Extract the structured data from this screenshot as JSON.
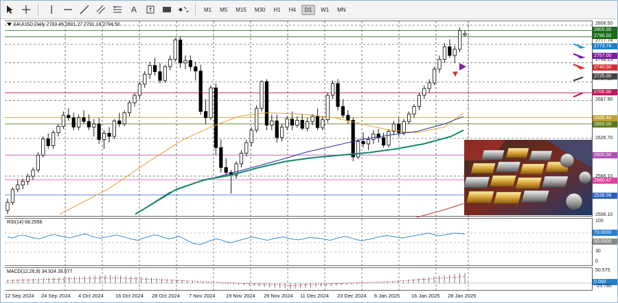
{
  "toolbar": {
    "timeframes": [
      "M1",
      "M5",
      "M15",
      "M30",
      "H1",
      "H4",
      "D1",
      "W1",
      "MN"
    ],
    "active_timeframe": "D1"
  },
  "main": {
    "symbol_info": "XAUUSD,Daily  2793.46 2801.27 2791.18 2794.50",
    "price_scale": [
      "2808.50",
      "2790.00",
      "2777.74",
      "2757.00",
      "2748.25",
      "2740.00",
      "2717.60",
      "2700.00",
      "2687.90",
      "2660.44",
      "2650.00",
      "2626.70",
      "2600.00",
      "2566.10",
      "2560.47",
      "2536.06",
      "2506.10"
    ],
    "tags": [
      {
        "text": "2800.00",
        "color": "#1a6b1a"
      },
      {
        "text": "2790.00",
        "color": "#1a6b1a"
      },
      {
        "text": "2773.74",
        "color": "#1f7fd1"
      },
      {
        "text": "2757.00",
        "color": "#7b1fa2"
      },
      {
        "text": "2740.00",
        "color": "#d32f2f"
      },
      {
        "text": "2725.00",
        "color": "#424242"
      },
      {
        "text": "2700.00",
        "color": "#c2185b"
      },
      {
        "text": "2660.44",
        "color": "#c0a030"
      },
      {
        "text": "2650.00",
        "color": "#5d7b1a"
      },
      {
        "text": "2600.00",
        "color": "#b050b0"
      },
      {
        "text": "2560.47",
        "color": "#e040a0"
      },
      {
        "text": "2536.06",
        "color": "#3060c0"
      }
    ]
  },
  "rsi": {
    "label": "RSI(14) 68.2556",
    "levels": [
      "70.0000",
      "50.0000",
      "30",
      "0"
    ],
    "scale_top": "100"
  },
  "macd": {
    "label": "MACD(12,26,9) 34.924 28.677",
    "levels": [
      "50.575",
      "0.000",
      "-25.780"
    ]
  },
  "xaxis": {
    "dates": [
      "12 Sep 2024",
      "24 Sep 2024",
      "4 Oct 2024",
      "16 Oct 2024",
      "28 Oct 2024",
      "7 Nov 2024",
      "19 Nov 2024",
      "29 Nov 2024",
      "11 Dec 2024",
      "23 Dec 2024",
      "6 Jan 2025",
      "16 Jan 2025",
      "28 Jan 2025"
    ]
  },
  "colors": {
    "bull": "#ffffff",
    "bear": "#000000",
    "ma_fast": "#e0a030",
    "ma_mid": "#2a2a9a",
    "ma_slow": "#138a6a",
    "ma_red": "#c03030"
  }
}
